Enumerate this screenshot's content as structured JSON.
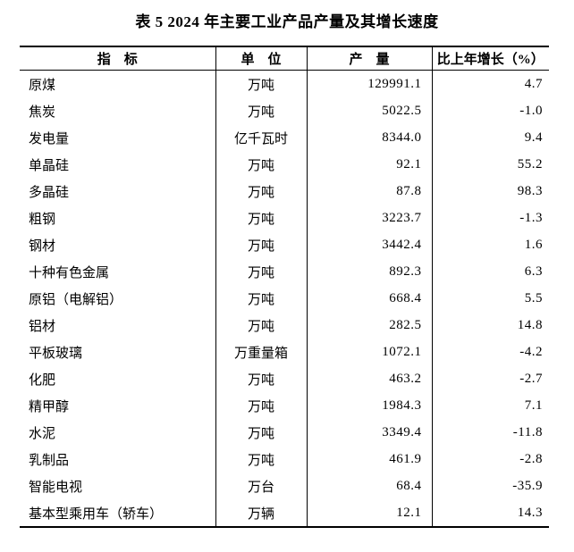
{
  "title": "表 5  2024 年主要工业产品产量及其增长速度",
  "table": {
    "headers": [
      "指　标",
      "单　位",
      "产　量",
      "比上年增长（%）"
    ],
    "rows": [
      {
        "indicator": "原煤",
        "unit": "万吨",
        "output": "129991.1",
        "growth": "4.7"
      },
      {
        "indicator": "焦炭",
        "unit": "万吨",
        "output": "5022.5",
        "growth": "-1.0"
      },
      {
        "indicator": "发电量",
        "unit": "亿千瓦时",
        "output": "8344.0",
        "growth": "9.4"
      },
      {
        "indicator": "单晶硅",
        "unit": "万吨",
        "output": "92.1",
        "growth": "55.2"
      },
      {
        "indicator": "多晶硅",
        "unit": "万吨",
        "output": "87.8",
        "growth": "98.3"
      },
      {
        "indicator": "粗钢",
        "unit": "万吨",
        "output": "3223.7",
        "growth": "-1.3"
      },
      {
        "indicator": "钢材",
        "unit": "万吨",
        "output": "3442.4",
        "growth": "1.6"
      },
      {
        "indicator": "十种有色金属",
        "unit": "万吨",
        "output": "892.3",
        "growth": "6.3"
      },
      {
        "indicator": "原铝（电解铝）",
        "unit": "万吨",
        "output": "668.4",
        "growth": "5.5"
      },
      {
        "indicator": "铝材",
        "unit": "万吨",
        "output": "282.5",
        "growth": "14.8"
      },
      {
        "indicator": "平板玻璃",
        "unit": "万重量箱",
        "output": "1072.1",
        "growth": "-4.2"
      },
      {
        "indicator": "化肥",
        "unit": "万吨",
        "output": "463.2",
        "growth": "-2.7"
      },
      {
        "indicator": "精甲醇",
        "unit": "万吨",
        "output": "1984.3",
        "growth": "7.1"
      },
      {
        "indicator": "水泥",
        "unit": "万吨",
        "output": "3349.4",
        "growth": "-11.8"
      },
      {
        "indicator": "乳制品",
        "unit": "万吨",
        "output": "461.9",
        "growth": "-2.8"
      },
      {
        "indicator": "智能电视",
        "unit": "万台",
        "output": "68.4",
        "growth": "-35.9"
      },
      {
        "indicator": "基本型乘用车（轿车）",
        "unit": "万辆",
        "output": "12.1",
        "growth": "14.3"
      }
    ]
  }
}
